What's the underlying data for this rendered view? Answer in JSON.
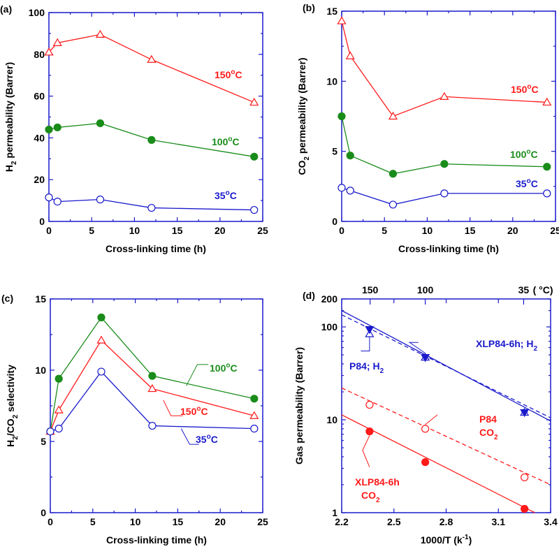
{
  "colors": {
    "red": "#ff1a1a",
    "green": "#1a8c1a",
    "blue": "#1a1acc"
  },
  "chart_data": [
    {
      "panel": "(a)",
      "type": "line",
      "xlabel": "Cross-linking time (h)",
      "ylabel": {
        "main": "H",
        "sub": "2",
        "rest": " permeability (Barrer)"
      },
      "xlim": [
        0,
        25
      ],
      "ylim": [
        0,
        100
      ],
      "xticks": [
        0,
        5,
        10,
        15,
        20,
        25
      ],
      "yticks": [
        0,
        20,
        40,
        60,
        80,
        100
      ],
      "series": [
        {
          "name": "150°C",
          "label": "150",
          "marker": "triangle-open",
          "color": "red",
          "x": [
            0,
            1,
            6,
            12,
            24
          ],
          "y": [
            81,
            85.5,
            89.5,
            77.5,
            57
          ]
        },
        {
          "name": "100°C",
          "label": "100",
          "marker": "circle-filled",
          "color": "green",
          "x": [
            0,
            1,
            6,
            12,
            24
          ],
          "y": [
            44,
            45,
            47,
            39,
            31
          ]
        },
        {
          "name": "35°C",
          "label": "35",
          "marker": "circle-open",
          "color": "blue",
          "x": [
            0,
            1,
            6,
            12,
            24
          ],
          "y": [
            11.5,
            9.5,
            10.5,
            6.5,
            5.5
          ]
        }
      ]
    },
    {
      "panel": "(b)",
      "type": "line",
      "xlabel": "Cross-linking time (h)",
      "ylabel": {
        "main": "CO",
        "sub": "2",
        "rest": " permeability (Barrer)"
      },
      "xlim": [
        0,
        25
      ],
      "ylim": [
        0,
        15
      ],
      "xticks": [
        0,
        5,
        10,
        15,
        20,
        25
      ],
      "yticks": [
        0,
        5,
        10,
        15
      ],
      "series": [
        {
          "name": "150°C",
          "label": "150",
          "marker": "triangle-open",
          "color": "red",
          "x": [
            0,
            1,
            6,
            12,
            24
          ],
          "y": [
            14.3,
            11.8,
            7.5,
            8.9,
            8.5
          ]
        },
        {
          "name": "100°C",
          "label": "100",
          "marker": "circle-filled",
          "color": "green",
          "x": [
            0,
            1,
            6,
            12,
            24
          ],
          "y": [
            7.5,
            4.7,
            3.4,
            4.1,
            3.9
          ]
        },
        {
          "name": "35°C",
          "label": "35",
          "marker": "circle-open",
          "color": "blue",
          "x": [
            0,
            1,
            6,
            12,
            24
          ],
          "y": [
            2.4,
            2.2,
            1.2,
            2.0,
            2.0
          ]
        }
      ]
    },
    {
      "panel": "(c)",
      "type": "line",
      "xlabel": "Cross-linking time (h)",
      "ylabel": {
        "parts": [
          "H",
          "2",
          "/CO",
          "2",
          " selectivity"
        ]
      },
      "xlim": [
        0,
        25
      ],
      "ylim": [
        0,
        15
      ],
      "xticks": [
        0,
        5,
        10,
        15,
        20,
        25
      ],
      "yticks": [
        0,
        5,
        10,
        15
      ],
      "series": [
        {
          "name": "100°C",
          "label": "100",
          "marker": "circle-filled",
          "color": "green",
          "x": [
            0,
            1,
            6,
            12,
            24
          ],
          "y": [
            5.7,
            9.4,
            13.7,
            9.6,
            8.0
          ]
        },
        {
          "name": "150°C",
          "label": "150",
          "marker": "triangle-open",
          "color": "red",
          "x": [
            0,
            1,
            6,
            12,
            24
          ],
          "y": [
            5.7,
            7.2,
            12.1,
            8.7,
            6.8
          ]
        },
        {
          "name": "35°C",
          "label": "35",
          "marker": "circle-open",
          "color": "blue",
          "x": [
            0,
            1,
            6,
            12,
            24
          ],
          "y": [
            5.7,
            5.9,
            9.9,
            6.1,
            5.9
          ]
        }
      ]
    },
    {
      "panel": "(d)",
      "type": "scatter",
      "xlabel": "1000/T (k",
      "xlabel_sup": "-1",
      "xlabel_end": ")",
      "ylabel": "Gas permeability (Barrer)",
      "xlim": [
        2.2,
        3.4
      ],
      "ylim": [
        1,
        200
      ],
      "yscale": "log",
      "xticks": [
        2.2,
        2.5,
        2.8,
        3.1,
        3.4
      ],
      "xtick_labels": [
        "2.2",
        "2.5",
        "2.8",
        "3.1",
        "3.4"
      ],
      "yticks": [
        1,
        10,
        100,
        200
      ],
      "ytick_labels": [
        "1",
        "10",
        "100",
        "200"
      ],
      "top_axis": {
        "label_unit": "( °C)",
        "ticks": [
          150,
          100,
          35
        ],
        "tick_labels": [
          "150",
          "100",
          "35"
        ]
      },
      "series": [
        {
          "name": "P84; H2",
          "marker": "triangle-open",
          "color": "blue",
          "x": [
            2.36,
            2.68,
            3.25
          ],
          "y": [
            84,
            47,
            12
          ]
        },
        {
          "name": "XLP84-6h; H2",
          "marker": "triangle-down-filled",
          "color": "blue",
          "x": [
            2.36,
            2.68,
            3.25
          ],
          "y": [
            94,
            47,
            12
          ]
        },
        {
          "name": "P84 CO2",
          "marker": "circle-open",
          "color": "red",
          "x": [
            2.36,
            2.68,
            3.25
          ],
          "y": [
            14.5,
            8,
            2.4
          ]
        },
        {
          "name": "XLP84-6h CO2",
          "marker": "circle-filled",
          "color": "red",
          "x": [
            2.36,
            2.68,
            3.25
          ],
          "y": [
            7.5,
            3.5,
            1.1
          ]
        }
      ],
      "fit_lines": [
        {
          "series": "XLP84-6h; H2",
          "style": "solid",
          "color": "blue",
          "x": [
            2.2,
            3.4
          ],
          "y": [
            150,
            9.7
          ]
        },
        {
          "series": "P84; H2",
          "style": "dashed",
          "color": "blue",
          "x": [
            2.2,
            3.4
          ],
          "y": [
            135,
            10.5
          ]
        },
        {
          "series": "P84 CO2",
          "style": "dashed",
          "color": "red",
          "x": [
            2.2,
            3.4
          ],
          "y": [
            22,
            2.0
          ]
        },
        {
          "series": "XLP84-6h CO2",
          "style": "solid",
          "color": "red",
          "x": [
            2.2,
            3.4
          ],
          "y": [
            11.3,
            0.82
          ]
        }
      ],
      "annotations": {
        "p84_h2": {
          "main": "P84; H",
          "sub": "2"
        },
        "xl_h2": {
          "main": "XLP84-6h; H",
          "sub": "2"
        },
        "p84_co2": {
          "line1": "P84",
          "line2": "CO",
          "sub": "2"
        },
        "xl_co2": {
          "line1": "XLP84-6h",
          "line2": "CO",
          "sub": "2"
        }
      }
    }
  ]
}
